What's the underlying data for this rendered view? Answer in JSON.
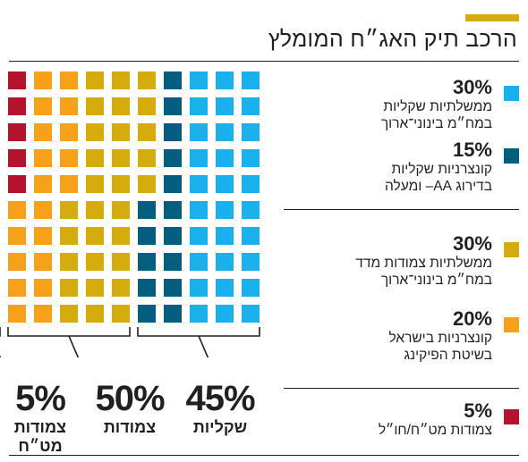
{
  "title": "הרכב תיק האג״ח המומלץ",
  "colors": {
    "accent": "#d4ac0d",
    "light_blue": "#1ab0ec",
    "dark_blue": "#045e80",
    "mustard": "#d4ac0d",
    "orange": "#f7a11a",
    "crimson": "#b5122e"
  },
  "legend": [
    {
      "pct": "30%",
      "color": "#1ab0ec",
      "lines": [
        "ממשלתיות שקליות",
        "במח״מ בינוני־ארוך"
      ]
    },
    {
      "pct": "15%",
      "color": "#045e80",
      "lines": [
        "קונצרניות שקליות",
        "בדירוג AA– ומעלה"
      ]
    },
    {
      "pct": "30%",
      "color": "#d4ac0d",
      "lines": [
        "ממשלתיות צמודות מדד",
        "במח״מ בינוני־ארוך"
      ]
    },
    {
      "pct": "20%",
      "color": "#f7a11a",
      "lines": [
        "קונצרניות בישראל",
        "בשיטת הפיקינג"
      ]
    },
    {
      "pct": "5%",
      "color": "#b5122e",
      "lines": [
        "צמודות מט״ח/חו״ל"
      ]
    }
  ],
  "groups": [
    {
      "pct": "45%",
      "label": "שקליות"
    },
    {
      "pct": "50%",
      "label": "צמודות"
    },
    {
      "pct": "5%",
      "label": "צמודות מט״ח"
    }
  ],
  "chart_data": {
    "type": "waffle",
    "title": "הרכב תיק האג״ח המומלץ",
    "grid": {
      "rows": 10,
      "columns": 10
    },
    "unit": "%",
    "series": [
      {
        "name": "ממשלתיות שקליות במח״מ בינוני־ארוך",
        "value": 30,
        "color": "#1ab0ec"
      },
      {
        "name": "קונצרניות שקליות בדירוג AA– ומעלה",
        "value": 15,
        "color": "#045e80"
      },
      {
        "name": "ממשלתיות צמודות מדד במח״מ בינוני־ארוך",
        "value": 30,
        "color": "#d4ac0d"
      },
      {
        "name": "קונצרניות בישראל בשיטת הפיקינג",
        "value": 20,
        "color": "#f7a11a"
      },
      {
        "name": "צמודות מט״ח/חו״ל",
        "value": 5,
        "color": "#b5122e"
      }
    ],
    "groups": [
      {
        "name": "שקליות",
        "value": 45
      },
      {
        "name": "צמודות",
        "value": 50
      },
      {
        "name": "צמודות מט״ח",
        "value": 5
      }
    ]
  }
}
